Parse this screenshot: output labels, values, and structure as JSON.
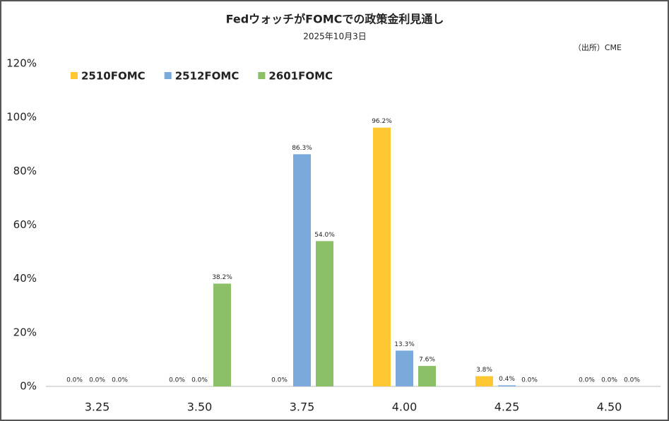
{
  "chart_data": {
    "type": "bar",
    "title": "FedウォッチがFOMCでの政策金利見通し",
    "subtitle": "2025年10月3日",
    "source": "（出所）CME",
    "categories": [
      "3.25",
      "3.50",
      "3.75",
      "4.00",
      "4.25",
      "4.50"
    ],
    "series": [
      {
        "name": "2510FOMC",
        "color": "#ffc832",
        "values": [
          0,
          0,
          0,
          96.2,
          3.8,
          0
        ],
        "value_labels": [
          "0.0%",
          "0.0%",
          "0.0%",
          "96.2%",
          "3.8%",
          "0.0%"
        ]
      },
      {
        "name": "2512FOMC",
        "color": "#7aaadc",
        "values": [
          0,
          0,
          86.3,
          13.3,
          0.4,
          0
        ],
        "value_labels": [
          "0.0%",
          "0.0%",
          "86.3%",
          "13.3%",
          "0.4%",
          "0.0%"
        ]
      },
      {
        "name": "2601FOMC",
        "color": "#8cc068",
        "values": [
          0,
          38.2,
          54,
          7.6,
          0,
          0
        ],
        "value_labels": [
          "0.0%",
          "38.2%",
          "54.0%",
          "7.6%",
          "0.0%",
          "0.0%"
        ]
      }
    ],
    "ylim": [
      0,
      120
    ],
    "yticks": [
      {
        "value": 0,
        "label": "0%"
      },
      {
        "value": 20,
        "label": "20%"
      },
      {
        "value": 40,
        "label": "40%"
      },
      {
        "value": 60,
        "label": "60%"
      },
      {
        "value": 80,
        "label": "80%"
      },
      {
        "value": 100,
        "label": "100%"
      },
      {
        "value": 120,
        "label": "120%"
      }
    ],
    "grid": false,
    "legend": "top-left"
  }
}
